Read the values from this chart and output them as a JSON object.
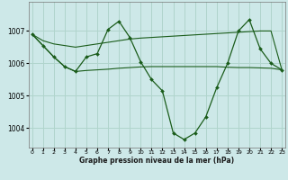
{
  "xlabel": "Graphe pression niveau de la mer (hPa)",
  "bg_color": "#cde8e8",
  "grid_color": "#b0d4cc",
  "line_color": "#1a5c1a",
  "ylim": [
    1003.4,
    1007.9
  ],
  "xlim": [
    -0.3,
    23.3
  ],
  "yticks": [
    1004,
    1005,
    1006,
    1007
  ],
  "xtick_labels": [
    "0",
    "1",
    "2",
    "3",
    "4",
    "5",
    "6",
    "7",
    "8",
    "9",
    "10",
    "11",
    "12",
    "13",
    "14",
    "15",
    "16",
    "17",
    "18",
    "19",
    "20",
    "21",
    "22",
    "23"
  ],
  "main_data": [
    1006.9,
    1006.55,
    1006.2,
    1005.9,
    1005.75,
    1006.2,
    1006.3,
    1007.05,
    1007.3,
    1006.8,
    1006.05,
    1005.5,
    1005.15,
    1003.85,
    1003.65,
    1003.85,
    1004.35,
    1005.25,
    1006.0,
    1007.0,
    1007.35,
    1006.45,
    1006.0,
    1005.8
  ],
  "trend1_data": [
    1006.9,
    1006.7,
    1006.6,
    1006.55,
    1006.5,
    1006.55,
    1006.6,
    1006.65,
    1006.7,
    1006.75,
    1006.78,
    1006.8,
    1006.82,
    1006.84,
    1006.86,
    1006.88,
    1006.9,
    1006.92,
    1006.94,
    1006.96,
    1006.98,
    1007.0,
    1007.0,
    1005.8
  ],
  "trend2_data": [
    1006.9,
    1006.55,
    1006.2,
    1005.9,
    1005.75,
    1005.78,
    1005.8,
    1005.82,
    1005.85,
    1005.87,
    1005.89,
    1005.9,
    1005.9,
    1005.9,
    1005.9,
    1005.9,
    1005.9,
    1005.9,
    1005.88,
    1005.87,
    1005.87,
    1005.86,
    1005.85,
    1005.8
  ]
}
